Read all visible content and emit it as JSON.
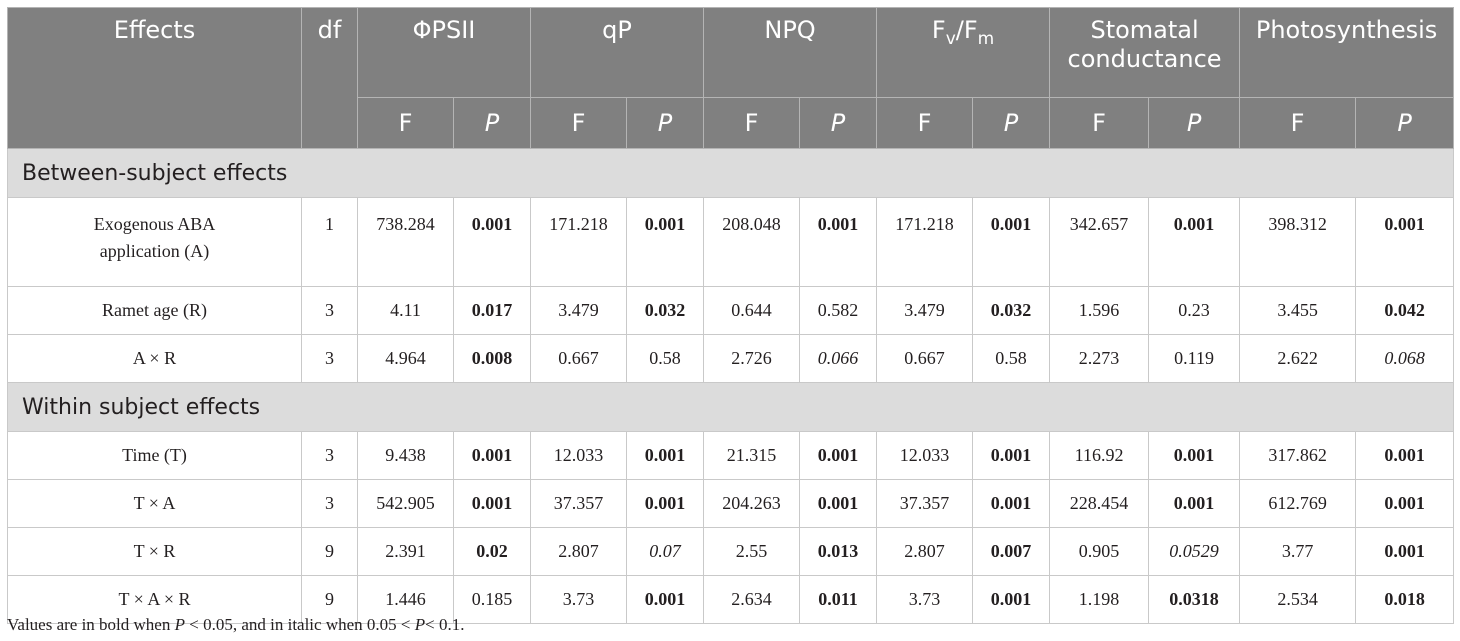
{
  "header": {
    "effects": "Effects",
    "df": "df",
    "phipsii": "ΦPSII",
    "qp": "qP",
    "npq": "NPQ",
    "fv_base": "F",
    "fv_sub": "v",
    "fv_slash": "/F",
    "fm_sub": "m",
    "stomatal": "Stomatal conductance",
    "photosynthesis": "Photosynthesis",
    "f_label": "F",
    "p_label": "P"
  },
  "sections": {
    "between": "Between-subject effects",
    "within": "Within subject effects"
  },
  "rows": [
    {
      "effect": "Exogenous ABA application (A)",
      "df": "1",
      "cells": [
        "738.284",
        "0.001",
        "171.218",
        "0.001",
        "208.048",
        "0.001",
        "171.218",
        "0.001",
        "342.657",
        "0.001",
        "398.312",
        "0.001"
      ]
    },
    {
      "effect": "Ramet age (R)",
      "df": "3",
      "cells": [
        "4.11",
        "0.017",
        "3.479",
        "0.032",
        "0.644",
        "0.582",
        "3.479",
        "0.032",
        "1.596",
        "0.23",
        "3.455",
        "0.042"
      ]
    },
    {
      "effect": "A × R",
      "df": "3",
      "cells": [
        "4.964",
        "0.008",
        "0.667",
        "0.58",
        "2.726",
        "0.066",
        "0.667",
        "0.58",
        "2.273",
        "0.119",
        "2.622",
        "0.068"
      ]
    },
    {
      "effect": "Time (T)",
      "df": "3",
      "cells": [
        "9.438",
        "0.001",
        "12.033",
        "0.001",
        "21.315",
        "0.001",
        "12.033",
        "0.001",
        "116.92",
        "0.001",
        "317.862",
        "0.001"
      ]
    },
    {
      "effect": "T × A",
      "df": "3",
      "cells": [
        "542.905",
        "0.001",
        "37.357",
        "0.001",
        "204.263",
        "0.001",
        "37.357",
        "0.001",
        "228.454",
        "0.001",
        "612.769",
        "0.001"
      ]
    },
    {
      "effect": "T × R",
      "df": "9",
      "cells": [
        "2.391",
        "0.02",
        "2.807",
        "0.07",
        "2.55",
        "0.013",
        "2.807",
        "0.007",
        "0.905",
        "0.0529",
        "3.77",
        "0.001"
      ]
    },
    {
      "effect": "T × A × R",
      "df": "9",
      "cells": [
        "1.446",
        "0.185",
        "3.73",
        "0.001",
        "2.634",
        "0.011",
        "3.73",
        "0.001",
        "1.198",
        "0.0318",
        "2.534",
        "0.018"
      ]
    }
  ],
  "footnote": {
    "part1": "Values are in bold when ",
    "p1": "P",
    "part2": " < 0.05, and in italic when 0.05 < ",
    "p2": "P",
    "part3": "< 0.1."
  }
}
